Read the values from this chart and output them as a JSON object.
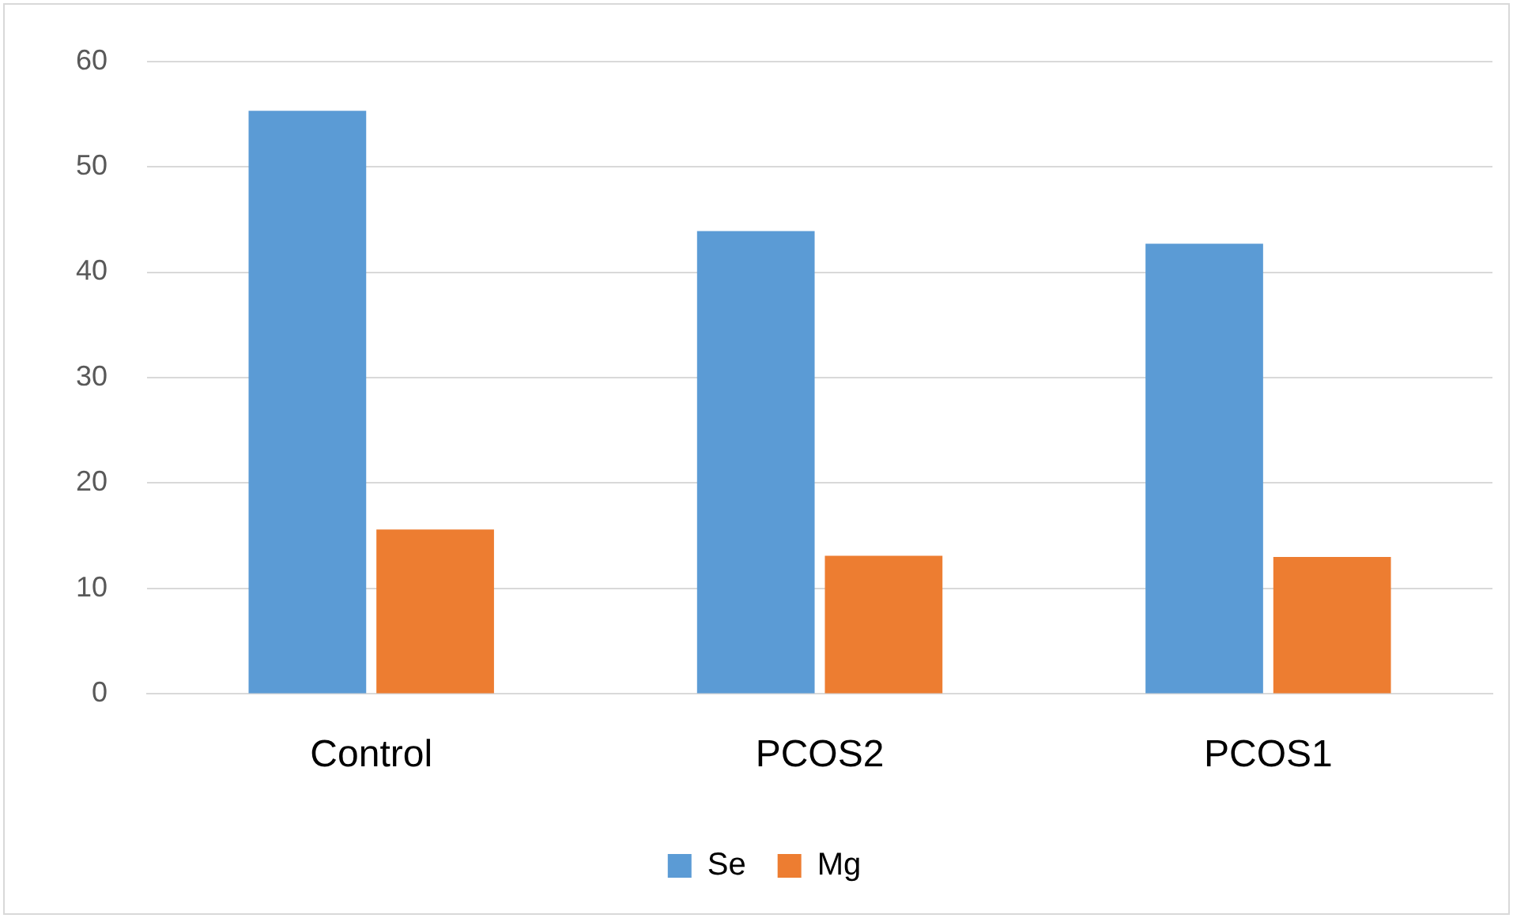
{
  "chart_data": {
    "type": "bar",
    "categories": [
      "Control",
      "PCOS2",
      "PCOS1"
    ],
    "series": [
      {
        "name": "Se",
        "color": "#5b9bd5",
        "values": [
          55.3,
          43.9,
          42.7
        ]
      },
      {
        "name": "Mg",
        "color": "#ed7d31",
        "values": [
          15.6,
          13.1,
          13.0
        ]
      }
    ],
    "ylim": [
      0,
      60
    ],
    "yticks": [
      0,
      10,
      20,
      30,
      40,
      50,
      60
    ],
    "grid": "y",
    "legend": "bottom"
  }
}
